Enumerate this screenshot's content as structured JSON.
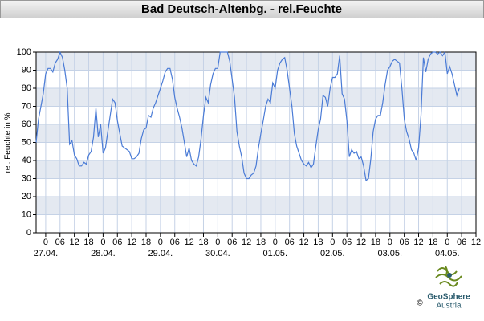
{
  "chart_data": {
    "type": "line",
    "title": "Bad Deutsch-Altenbg. - rel.Feuchte",
    "ylabel": "rel. Feuchte in %",
    "xlim": [
      -4,
      180
    ],
    "ylim": [
      0,
      100
    ],
    "yticks": [
      0,
      10,
      20,
      30,
      40,
      50,
      60,
      70,
      80,
      90,
      100
    ],
    "xticks": [
      0,
      {
        "value": 6,
        "label": "06"
      },
      12,
      18,
      {
        "value": 24,
        "label": "0"
      },
      {
        "value": 30,
        "label": "06"
      },
      {
        "value": 36,
        "label": "12"
      },
      {
        "value": 42,
        "label": "18"
      },
      {
        "value": 48,
        "label": "0"
      },
      {
        "value": 54,
        "label": "06"
      },
      {
        "value": 60,
        "label": "12"
      },
      {
        "value": 66,
        "label": "18"
      },
      {
        "value": 72,
        "label": "0"
      },
      {
        "value": 78,
        "label": "06"
      },
      {
        "value": 84,
        "label": "12"
      },
      {
        "value": 90,
        "label": "18"
      },
      {
        "value": 96,
        "label": "0"
      },
      {
        "value": 102,
        "label": "06"
      },
      {
        "value": 108,
        "label": "12"
      },
      {
        "value": 114,
        "label": "18"
      },
      {
        "value": 120,
        "label": "0"
      },
      {
        "value": 126,
        "label": "06"
      },
      {
        "value": 132,
        "label": "12"
      },
      {
        "value": 138,
        "label": "18"
      },
      {
        "value": 144,
        "label": "0"
      },
      {
        "value": 150,
        "label": "06"
      },
      {
        "value": 156,
        "label": "12"
      },
      {
        "value": 162,
        "label": "18"
      },
      {
        "value": 168,
        "label": "0"
      },
      {
        "value": 174,
        "label": "06"
      },
      {
        "value": 180,
        "label": "12"
      }
    ],
    "date_labels": [
      {
        "value": 0,
        "label": "27.04."
      },
      {
        "value": 24,
        "label": "28.04."
      },
      {
        "value": 48,
        "label": "29.04."
      },
      {
        "value": 72,
        "label": "30.04."
      },
      {
        "value": 96,
        "label": "01.05."
      },
      {
        "value": 120,
        "label": "02.05."
      },
      {
        "value": 144,
        "label": "03.05."
      },
      {
        "value": 168,
        "label": "04.05."
      }
    ],
    "grid": true,
    "x": [
      -4,
      -3,
      -2,
      -1,
      0,
      1,
      2,
      3,
      4,
      5,
      6,
      7,
      8,
      9,
      10,
      11,
      12,
      13,
      14,
      15,
      16,
      17,
      18,
      19,
      20,
      21,
      22,
      23,
      24,
      25,
      26,
      27,
      28,
      29,
      30,
      31,
      32,
      33,
      34,
      35,
      36,
      37,
      38,
      39,
      40,
      41,
      42,
      43,
      44,
      45,
      46,
      47,
      48,
      49,
      50,
      51,
      52,
      53,
      54,
      55,
      56,
      57,
      58,
      59,
      60,
      61,
      62,
      63,
      64,
      65,
      66,
      67,
      68,
      69,
      70,
      71,
      72,
      73,
      74,
      75,
      76,
      77,
      78,
      79,
      80,
      81,
      82,
      83,
      84,
      85,
      86,
      87,
      88,
      89,
      90,
      91,
      92,
      93,
      94,
      95,
      96,
      97,
      98,
      99,
      100,
      101,
      102,
      103,
      104,
      105,
      106,
      107,
      108,
      109,
      110,
      111,
      112,
      113,
      114,
      115,
      116,
      117,
      118,
      119,
      120,
      121,
      122,
      123,
      124,
      125,
      126,
      127,
      128,
      129,
      130,
      131,
      132,
      133,
      134,
      135,
      136,
      137,
      138,
      139,
      140,
      141,
      142,
      143,
      144,
      145,
      146,
      147,
      148,
      149,
      150,
      151,
      152,
      153,
      154,
      155,
      156,
      157,
      158,
      159,
      160,
      161,
      162,
      163,
      164,
      165,
      166,
      167,
      168,
      169,
      170,
      171,
      172,
      173
    ],
    "series": [
      {
        "color": "#4a7bd6",
        "values": [
          50,
          63,
          70,
          77,
          88,
          91,
          91,
          89,
          94,
          96,
          100,
          97,
          90,
          80,
          49,
          51,
          43,
          41,
          37,
          37,
          39,
          38,
          43,
          45,
          53,
          69,
          53,
          60,
          44,
          47,
          56,
          65,
          74,
          72,
          62,
          55,
          48,
          47,
          46,
          45,
          41,
          41,
          42,
          44,
          52,
          57,
          58,
          65,
          64,
          69,
          72,
          76,
          80,
          84,
          89,
          91,
          91,
          85,
          75,
          69,
          64,
          58,
          50,
          42,
          47,
          40,
          38,
          37,
          42,
          52,
          65,
          75,
          72,
          82,
          88,
          91,
          91,
          100,
          100,
          100,
          100,
          95,
          85,
          75,
          56,
          48,
          42,
          33,
          30,
          30,
          32,
          33,
          37,
          47,
          55,
          62,
          70,
          74,
          72,
          83,
          80,
          90,
          94,
          96,
          97,
          90,
          80,
          70,
          55,
          48,
          44,
          40,
          38,
          37,
          39,
          36,
          38,
          48,
          57,
          63,
          76,
          75,
          70,
          80,
          86,
          86,
          88,
          98,
          77,
          74,
          62,
          42,
          46,
          44,
          45,
          41,
          42,
          37,
          29,
          30,
          41,
          56,
          63,
          65,
          65,
          72,
          82,
          90,
          92,
          95,
          96,
          95,
          94,
          80,
          63,
          56,
          52,
          46,
          44,
          40,
          47,
          65,
          97,
          89,
          96,
          99,
          100,
          100,
          99,
          100,
          98,
          100,
          88,
          92,
          88,
          82,
          76,
          80
        ]
      }
    ]
  },
  "footer": {
    "brand": "GeoSphere",
    "sub": "Austria",
    "copyright": "©"
  }
}
